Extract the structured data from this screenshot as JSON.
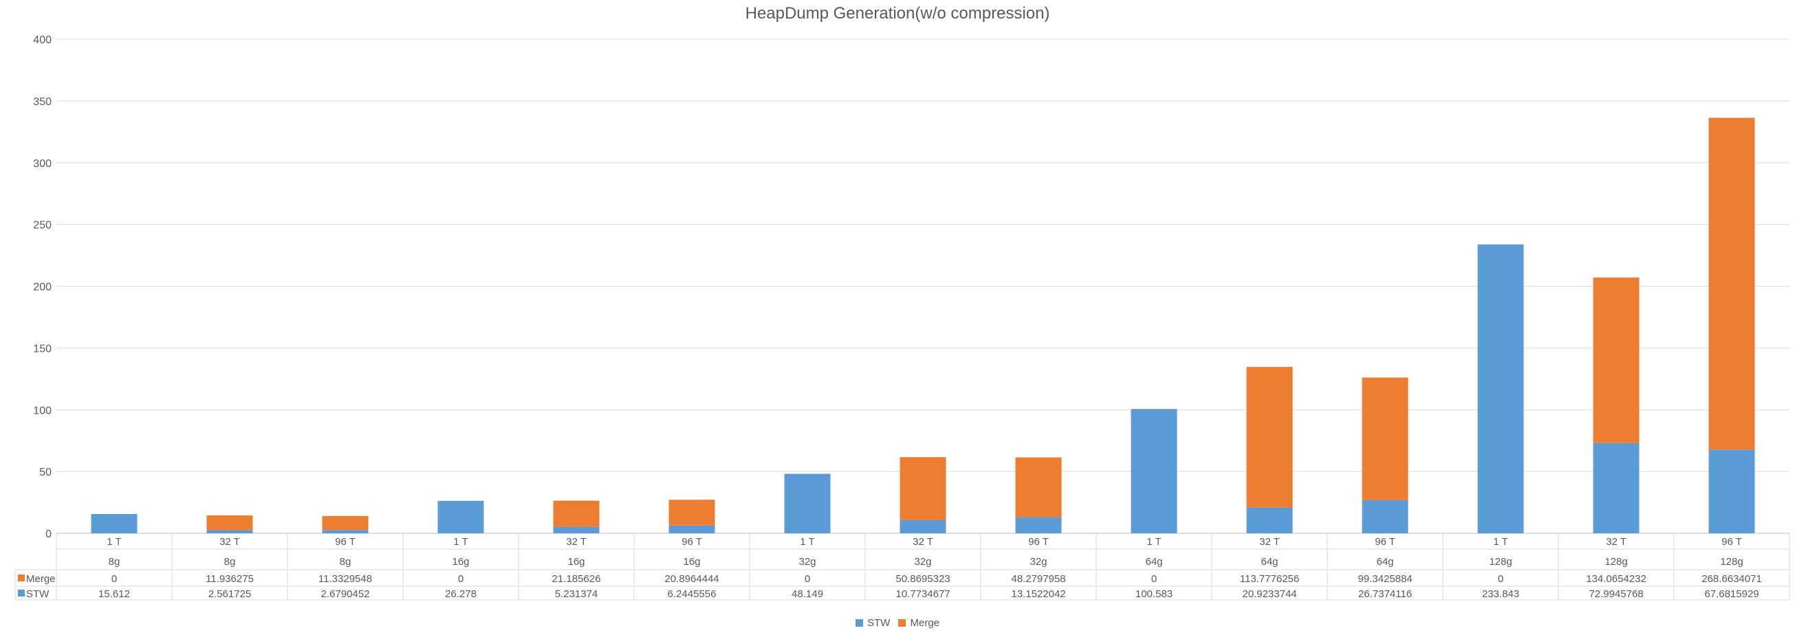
{
  "chart_data": {
    "type": "bar",
    "stacked": true,
    "title": "HeapDump Generation(w/o compression)",
    "xlabel": "",
    "ylabel": "",
    "ylim": [
      0,
      400
    ],
    "yticks": [
      0,
      50,
      100,
      150,
      200,
      250,
      300,
      350,
      400
    ],
    "grid": true,
    "legend_position": "bottom",
    "categories": [
      [
        "1 T",
        "8g"
      ],
      [
        "32 T",
        "8g"
      ],
      [
        "96 T",
        "8g"
      ],
      [
        "1 T",
        "16g"
      ],
      [
        "32 T",
        "16g"
      ],
      [
        "96 T",
        "16g"
      ],
      [
        "1 T",
        "32g"
      ],
      [
        "32 T",
        "32g"
      ],
      [
        "96 T",
        "32g"
      ],
      [
        "1 T",
        "64g"
      ],
      [
        "32 T",
        "64g"
      ],
      [
        "96 T",
        "64g"
      ],
      [
        "1 T",
        "128g"
      ],
      [
        "32 T",
        "128g"
      ],
      [
        "96 T",
        "128g"
      ]
    ],
    "series": [
      {
        "name": "STW",
        "color": "#5B9BD5",
        "values": [
          15.612,
          2.561725,
          2.6790452,
          26.278,
          5.231374,
          6.2445556,
          48.149,
          10.7734677,
          13.1522042,
          100.583,
          20.9233744,
          26.7374116,
          233.843,
          72.9945768,
          67.6815929
        ],
        "labels": [
          "15.612",
          "2.561725",
          "2.6790452",
          "26.278",
          "5.231374",
          "6.2445556",
          "48.149",
          "10.7734677",
          "13.1522042",
          "100.583",
          "20.9233744",
          "26.7374116",
          "233.843",
          "72.9945768",
          "67.6815929"
        ]
      },
      {
        "name": "Merge",
        "color": "#ED7D31",
        "values": [
          0,
          11.936275,
          11.3329548,
          0,
          21.185626,
          20.8964444,
          0,
          50.8695323,
          48.2797958,
          0,
          113.7776256,
          99.3425884,
          0,
          134.0654232,
          268.6634071
        ],
        "labels": [
          "0",
          "11.936275",
          "11.3329548",
          "0",
          "21.185626",
          "20.8964444",
          "0",
          "50.8695323",
          "48.2797958",
          "0",
          "113.7776256",
          "99.3425884",
          "0",
          "134.0654232",
          "268.6634071"
        ]
      }
    ]
  }
}
